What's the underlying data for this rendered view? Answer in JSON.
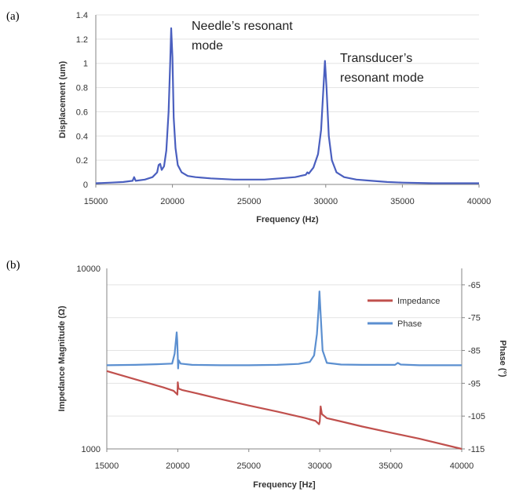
{
  "panels": {
    "a": "(a)",
    "b": "(b)"
  },
  "colors": {
    "displacement": "#4a5fbf",
    "impedance": "#c0504d",
    "phase": "#5b8fd0",
    "axis": "#868686"
  },
  "chart_data": [
    {
      "type": "line",
      "xlabel": "Frequency (Hz)",
      "ylabel": "Displacement (um)",
      "xlim": [
        15000,
        40000
      ],
      "ylim": [
        0,
        1.4
      ],
      "x_ticks": [
        "15000",
        "20000",
        "25000",
        "30000",
        "35000",
        "40000"
      ],
      "y_ticks": [
        "0",
        "0.2",
        "0.4",
        "0.6",
        "0.8",
        "1",
        "1.2",
        "1.4"
      ],
      "annotations": [
        {
          "lines": [
            "Needle’s resonant",
            "mode"
          ],
          "x": 20000,
          "y": 1.29
        },
        {
          "lines": [
            "Transducer’s",
            "resonant mode"
          ],
          "x": 30000,
          "y": 1.02
        }
      ],
      "series": [
        {
          "points": [
            [
              15000,
              0.01
            ],
            [
              16000,
              0.015
            ],
            [
              16800,
              0.02
            ],
            [
              17400,
              0.03
            ],
            [
              17500,
              0.06
            ],
            [
              17600,
              0.03
            ],
            [
              18200,
              0.04
            ],
            [
              18700,
              0.06
            ],
            [
              19000,
              0.1
            ],
            [
              19100,
              0.16
            ],
            [
              19200,
              0.17
            ],
            [
              19300,
              0.12
            ],
            [
              19450,
              0.15
            ],
            [
              19600,
              0.28
            ],
            [
              19750,
              0.6
            ],
            [
              19850,
              1.0
            ],
            [
              19920,
              1.29
            ],
            [
              20000,
              1.05
            ],
            [
              20080,
              0.55
            ],
            [
              20200,
              0.3
            ],
            [
              20350,
              0.16
            ],
            [
              20600,
              0.1
            ],
            [
              21000,
              0.07
            ],
            [
              21500,
              0.06
            ],
            [
              22500,
              0.05
            ],
            [
              24000,
              0.04
            ],
            [
              25000,
              0.04
            ],
            [
              26000,
              0.04
            ],
            [
              27000,
              0.05
            ],
            [
              28000,
              0.06
            ],
            [
              28700,
              0.08
            ],
            [
              28800,
              0.1
            ],
            [
              28900,
              0.09
            ],
            [
              29200,
              0.14
            ],
            [
              29500,
              0.25
            ],
            [
              29700,
              0.45
            ],
            [
              29850,
              0.8
            ],
            [
              29950,
              1.02
            ],
            [
              30050,
              0.8
            ],
            [
              30200,
              0.4
            ],
            [
              30400,
              0.2
            ],
            [
              30700,
              0.1
            ],
            [
              31200,
              0.06
            ],
            [
              32000,
              0.04
            ],
            [
              33000,
              0.03
            ],
            [
              34000,
              0.02
            ],
            [
              35000,
              0.015
            ],
            [
              37000,
              0.01
            ],
            [
              40000,
              0.01
            ]
          ]
        }
      ]
    },
    {
      "type": "line",
      "xlabel": "Frequency [Hz]",
      "ylabel": "Impedance Magnitude (Ω)",
      "ylabel_right": "Phase (°)",
      "xlim": [
        15000,
        40000
      ],
      "ylim": [
        1000,
        10000
      ],
      "yscale": "log",
      "ylim_right": [
        -115,
        -60
      ],
      "x_ticks": [
        "15000",
        "20000",
        "25000",
        "30000",
        "35000",
        "40000"
      ],
      "y_ticks": [
        "1000",
        "10000"
      ],
      "y_ticks_right": [
        "-65",
        "-75",
        "-85",
        "-95",
        "-105",
        "-115"
      ],
      "legend": {
        "position": "top-right",
        "items": [
          "Impedance",
          "Phase"
        ]
      },
      "series": [
        {
          "name": "Impedance",
          "axis": "left",
          "points": [
            [
              15000,
              2700
            ],
            [
              17000,
              2430
            ],
            [
              19000,
              2190
            ],
            [
              19700,
              2100
            ],
            [
              19930,
              2020
            ],
            [
              19970,
              2000
            ],
            [
              20000,
              2340
            ],
            [
              20050,
              2160
            ],
            [
              20300,
              2120
            ],
            [
              21000,
              2060
            ],
            [
              23000,
              1890
            ],
            [
              25000,
              1740
            ],
            [
              27000,
              1610
            ],
            [
              29000,
              1480
            ],
            [
              29700,
              1430
            ],
            [
              29950,
              1370
            ],
            [
              30000,
              1420
            ],
            [
              30060,
              1720
            ],
            [
              30150,
              1560
            ],
            [
              30500,
              1480
            ],
            [
              31500,
              1420
            ],
            [
              33000,
              1330
            ],
            [
              35000,
              1230
            ],
            [
              37000,
              1140
            ],
            [
              40000,
              1000
            ]
          ]
        },
        {
          "name": "Phase",
          "axis": "right",
          "points": [
            [
              15000,
              -89.5
            ],
            [
              17000,
              -89.4
            ],
            [
              18500,
              -89.2
            ],
            [
              19600,
              -89
            ],
            [
              19780,
              -86
            ],
            [
              19870,
              -82
            ],
            [
              19920,
              -79.5
            ],
            [
              19960,
              -82
            ],
            [
              20000,
              -87
            ],
            [
              20020,
              -90.5
            ],
            [
              20060,
              -88
            ],
            [
              20200,
              -89
            ],
            [
              21000,
              -89.4
            ],
            [
              23000,
              -89.5
            ],
            [
              25000,
              -89.5
            ],
            [
              27000,
              -89.4
            ],
            [
              28500,
              -89.1
            ],
            [
              29300,
              -88.5
            ],
            [
              29600,
              -86.5
            ],
            [
              29800,
              -80
            ],
            [
              29920,
              -72
            ],
            [
              29980,
              -67
            ],
            [
              30050,
              -73
            ],
            [
              30200,
              -85
            ],
            [
              30500,
              -88.8
            ],
            [
              31500,
              -89.3
            ],
            [
              33000,
              -89.4
            ],
            [
              35300,
              -89.4
            ],
            [
              35500,
              -88.8
            ],
            [
              35700,
              -89.3
            ],
            [
              37000,
              -89.5
            ],
            [
              40000,
              -89.5
            ]
          ]
        }
      ]
    }
  ]
}
